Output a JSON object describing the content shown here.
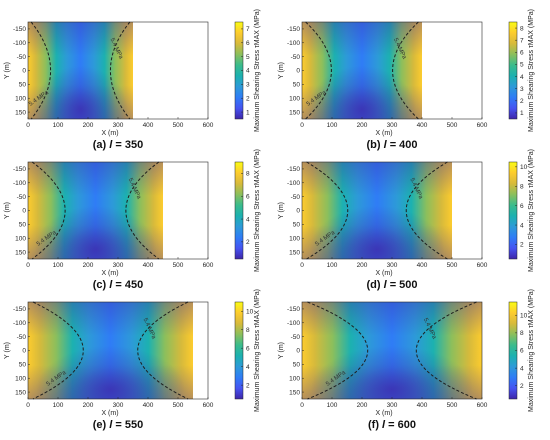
{
  "figure": {
    "colors": [
      "#3e26a8",
      "#4653f1",
      "#2f7cf6",
      "#2d9ad8",
      "#1cb1b0",
      "#3bbc8c",
      "#8cbf5c",
      "#d7ba3b",
      "#fdcc2e",
      "#f9fb15"
    ],
    "contour_color": "#1f1f1f"
  },
  "chart_data": [
    {
      "type": "heatmap",
      "panel_label": "(a)",
      "caption_var": "l",
      "caption_value": "= 350",
      "xlabel": "X (m)",
      "ylabel": "Y (m)",
      "colorbar_label": "Maximum Shearing Stress τMAX (MPa)",
      "x_range": [
        0,
        350
      ],
      "y_range": [
        -175,
        175
      ],
      "xlim": [
        0,
        600
      ],
      "ylim": [
        -175,
        175
      ],
      "xticks": [
        "0",
        "100",
        "200",
        "300",
        "400",
        "500",
        "600"
      ],
      "yticks": [
        "-150",
        "-100",
        "-50",
        "0",
        "50",
        "100",
        "150"
      ],
      "colorbar_ticks": [
        "1",
        "2",
        "3",
        "4",
        "5",
        "6",
        "7"
      ],
      "colorbar_range": [
        0.5,
        7.5
      ],
      "contour_level": 5.4,
      "contour_label": "5.4 MPa"
    },
    {
      "type": "heatmap",
      "panel_label": "(b)",
      "caption_var": "l",
      "caption_value": "= 400",
      "xlabel": "X (m)",
      "ylabel": "Y (m)",
      "colorbar_label": "Maximum Shearing Stress τMAX (MPa)",
      "x_range": [
        0,
        400
      ],
      "y_range": [
        -175,
        175
      ],
      "xlim": [
        0,
        600
      ],
      "ylim": [
        -175,
        175
      ],
      "xticks": [
        "0",
        "100",
        "200",
        "300",
        "400",
        "500",
        "600"
      ],
      "yticks": [
        "-150",
        "-100",
        "-50",
        "0",
        "50",
        "100",
        "150"
      ],
      "colorbar_ticks": [
        "1",
        "2",
        "3",
        "4",
        "5",
        "6",
        "7",
        "8"
      ],
      "colorbar_range": [
        0.5,
        8.5
      ],
      "contour_level": 5.4,
      "contour_label": "5.4 MPa"
    },
    {
      "type": "heatmap",
      "panel_label": "(c)",
      "caption_var": "l",
      "caption_value": "= 450",
      "xlabel": "X (m)",
      "ylabel": "Y (m)",
      "colorbar_label": "Maximum Shearing Stress τMAX (MPa)",
      "x_range": [
        0,
        450
      ],
      "y_range": [
        -175,
        175
      ],
      "xlim": [
        0,
        600
      ],
      "ylim": [
        -175,
        175
      ],
      "xticks": [
        "0",
        "100",
        "200",
        "300",
        "400",
        "500",
        "600"
      ],
      "yticks": [
        "-150",
        "-100",
        "-50",
        "0",
        "50",
        "100",
        "150"
      ],
      "colorbar_ticks": [
        "2",
        "4",
        "6",
        "8"
      ],
      "colorbar_range": [
        0.5,
        9
      ],
      "contour_level": 5.4,
      "contour_label": "5.4 MPa"
    },
    {
      "type": "heatmap",
      "panel_label": "(d)",
      "caption_var": "l",
      "caption_value": "= 500",
      "xlabel": "X (m)",
      "ylabel": "Y (m)",
      "colorbar_label": "Maximum Shearing Stress τMAX (MPa)",
      "x_range": [
        0,
        500
      ],
      "y_range": [
        -175,
        175
      ],
      "xlim": [
        0,
        600
      ],
      "ylim": [
        -175,
        175
      ],
      "xticks": [
        "0",
        "100",
        "200",
        "300",
        "400",
        "500",
        "600"
      ],
      "yticks": [
        "-150",
        "-100",
        "-50",
        "0",
        "50",
        "100",
        "150"
      ],
      "colorbar_ticks": [
        "2",
        "4",
        "6",
        "8",
        "10"
      ],
      "colorbar_range": [
        0.5,
        10.5
      ],
      "contour_level": 5.4,
      "contour_label": "5.4 MPa"
    },
    {
      "type": "heatmap",
      "panel_label": "(e)",
      "caption_var": "l",
      "caption_value": "= 550",
      "xlabel": "X (m)",
      "ylabel": "Y (m)",
      "colorbar_label": "Maximum Shearing Stress τMAX (MPa)",
      "x_range": [
        0,
        550
      ],
      "y_range": [
        -175,
        175
      ],
      "xlim": [
        0,
        600
      ],
      "ylim": [
        -175,
        175
      ],
      "xticks": [
        "0",
        "100",
        "200",
        "300",
        "400",
        "500",
        "600"
      ],
      "yticks": [
        "-150",
        "-100",
        "-50",
        "0",
        "50",
        "100",
        "150"
      ],
      "colorbar_ticks": [
        "2",
        "4",
        "6",
        "8",
        "10"
      ],
      "colorbar_range": [
        0.5,
        11
      ],
      "contour_level": 5.4,
      "contour_label": "5.4 MPa"
    },
    {
      "type": "heatmap",
      "panel_label": "(f)",
      "caption_var": "l",
      "caption_value": "= 600",
      "xlabel": "X (m)",
      "ylabel": "Y (m)",
      "colorbar_label": "Maximum Shearing Stress τMAX (MPa)",
      "x_range": [
        0,
        600
      ],
      "y_range": [
        -175,
        175
      ],
      "xlim": [
        0,
        600
      ],
      "ylim": [
        -175,
        175
      ],
      "xticks": [
        "0",
        "100",
        "200",
        "300",
        "400",
        "500",
        "600"
      ],
      "yticks": [
        "-150",
        "-100",
        "-50",
        "0",
        "50",
        "100",
        "150"
      ],
      "colorbar_ticks": [
        "2",
        "4",
        "6",
        "8",
        "10"
      ],
      "colorbar_range": [
        0.5,
        11.5
      ],
      "contour_level": 5.4,
      "contour_label": "5.4 MPa"
    }
  ]
}
